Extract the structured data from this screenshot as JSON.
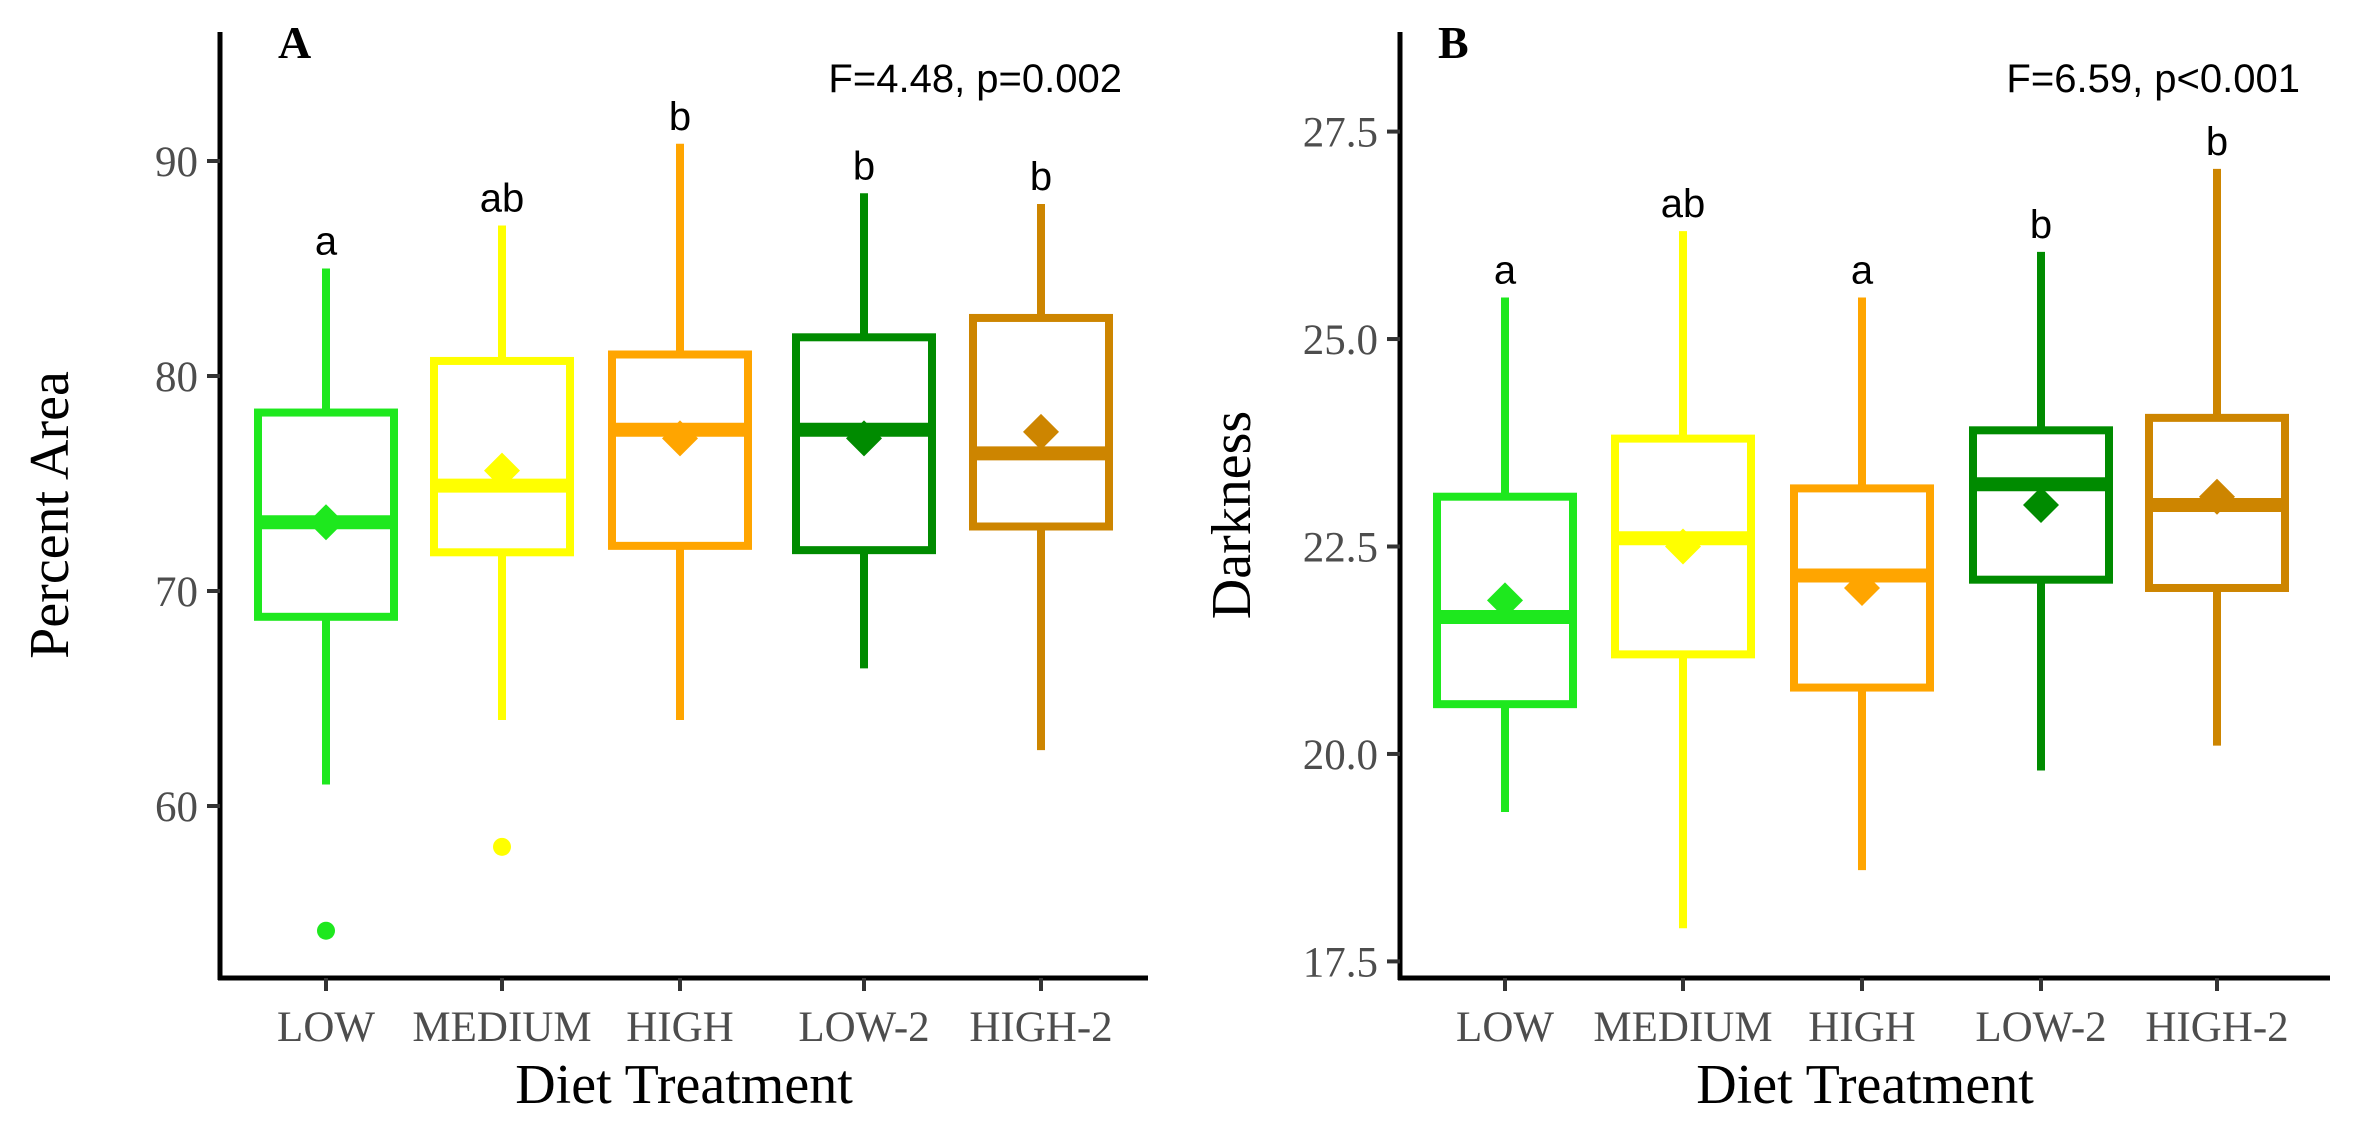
{
  "chart_data": [
    {
      "type": "box",
      "panel_label": "A",
      "annotation": "F=4.48, p=0.002",
      "xlabel": "Diet Treatment",
      "ylabel": "Percent Area",
      "categories": [
        "LOW",
        "MEDIUM",
        "HIGH",
        "LOW-2",
        "HIGH-2"
      ],
      "colors": [
        "#1EE81E",
        "#FFFF00",
        "#FFA500",
        "#008B00",
        "#CD8500"
      ],
      "ylim": [
        52,
        96
      ],
      "yticks": [
        60,
        70,
        80,
        90
      ],
      "ytick_labels": [
        "60",
        "70",
        "80",
        "90"
      ],
      "grid": false,
      "boxes": [
        {
          "name": "LOW",
          "whisker_low": 61,
          "q1": 68.8,
          "median": 73.2,
          "q3": 78.3,
          "whisker_high": 85,
          "mean": 73.2,
          "outliers": [
            54.2
          ],
          "letter": "a"
        },
        {
          "name": "MEDIUM",
          "whisker_low": 64,
          "q1": 71.8,
          "median": 74.9,
          "q3": 80.7,
          "whisker_high": 87,
          "mean": 75.6,
          "outliers": [
            58.1
          ],
          "letter": "ab"
        },
        {
          "name": "HIGH",
          "whisker_low": 64,
          "q1": 72.1,
          "median": 77.5,
          "q3": 81.0,
          "whisker_high": 90.8,
          "mean": 77.1,
          "outliers": [],
          "letter": "b"
        },
        {
          "name": "LOW-2",
          "whisker_low": 66.4,
          "q1": 71.9,
          "median": 77.5,
          "q3": 81.8,
          "whisker_high": 88.5,
          "mean": 77.1,
          "outliers": [],
          "letter": "b"
        },
        {
          "name": "HIGH-2",
          "whisker_low": 62.6,
          "q1": 73.0,
          "median": 76.4,
          "q3": 82.7,
          "whisker_high": 88.0,
          "mean": 77.4,
          "outliers": [],
          "letter": "b"
        }
      ]
    },
    {
      "type": "box",
      "panel_label": "B",
      "annotation": "F=6.59, p<0.001",
      "xlabel": "Diet Treatment",
      "ylabel": "Darkness",
      "categories": [
        "LOW",
        "MEDIUM",
        "HIGH",
        "LOW-2",
        "HIGH-2"
      ],
      "colors": [
        "#1EE81E",
        "#FFFF00",
        "#FFA500",
        "#008B00",
        "#CD8500"
      ],
      "ylim": [
        17.3,
        28.7
      ],
      "yticks": [
        17.5,
        20.0,
        22.5,
        25.0,
        27.5
      ],
      "ytick_labels": [
        "17.5",
        "20.0",
        "22.5",
        "25.0",
        "27.5"
      ],
      "grid": false,
      "boxes": [
        {
          "name": "LOW",
          "whisker_low": 19.3,
          "q1": 20.6,
          "median": 21.65,
          "q3": 23.1,
          "whisker_high": 25.5,
          "mean": 21.85,
          "outliers": [],
          "letter": "a"
        },
        {
          "name": "MEDIUM",
          "whisker_low": 17.9,
          "q1": 21.2,
          "median": 22.6,
          "q3": 23.8,
          "whisker_high": 26.3,
          "mean": 22.5,
          "outliers": [],
          "letter": "ab"
        },
        {
          "name": "HIGH",
          "whisker_low": 18.6,
          "q1": 20.8,
          "median": 22.15,
          "q3": 23.2,
          "whisker_high": 25.5,
          "mean": 22.0,
          "outliers": [],
          "letter": "a"
        },
        {
          "name": "LOW-2",
          "whisker_low": 19.8,
          "q1": 22.1,
          "median": 23.25,
          "q3": 23.9,
          "whisker_high": 26.05,
          "mean": 23.0,
          "outliers": [],
          "letter": "b"
        },
        {
          "name": "HIGH-2",
          "whisker_low": 20.1,
          "q1": 22.0,
          "median": 23.0,
          "q3": 24.05,
          "whisker_high": 27.05,
          "mean": 23.1,
          "outliers": [],
          "letter": "b"
        }
      ]
    }
  ]
}
